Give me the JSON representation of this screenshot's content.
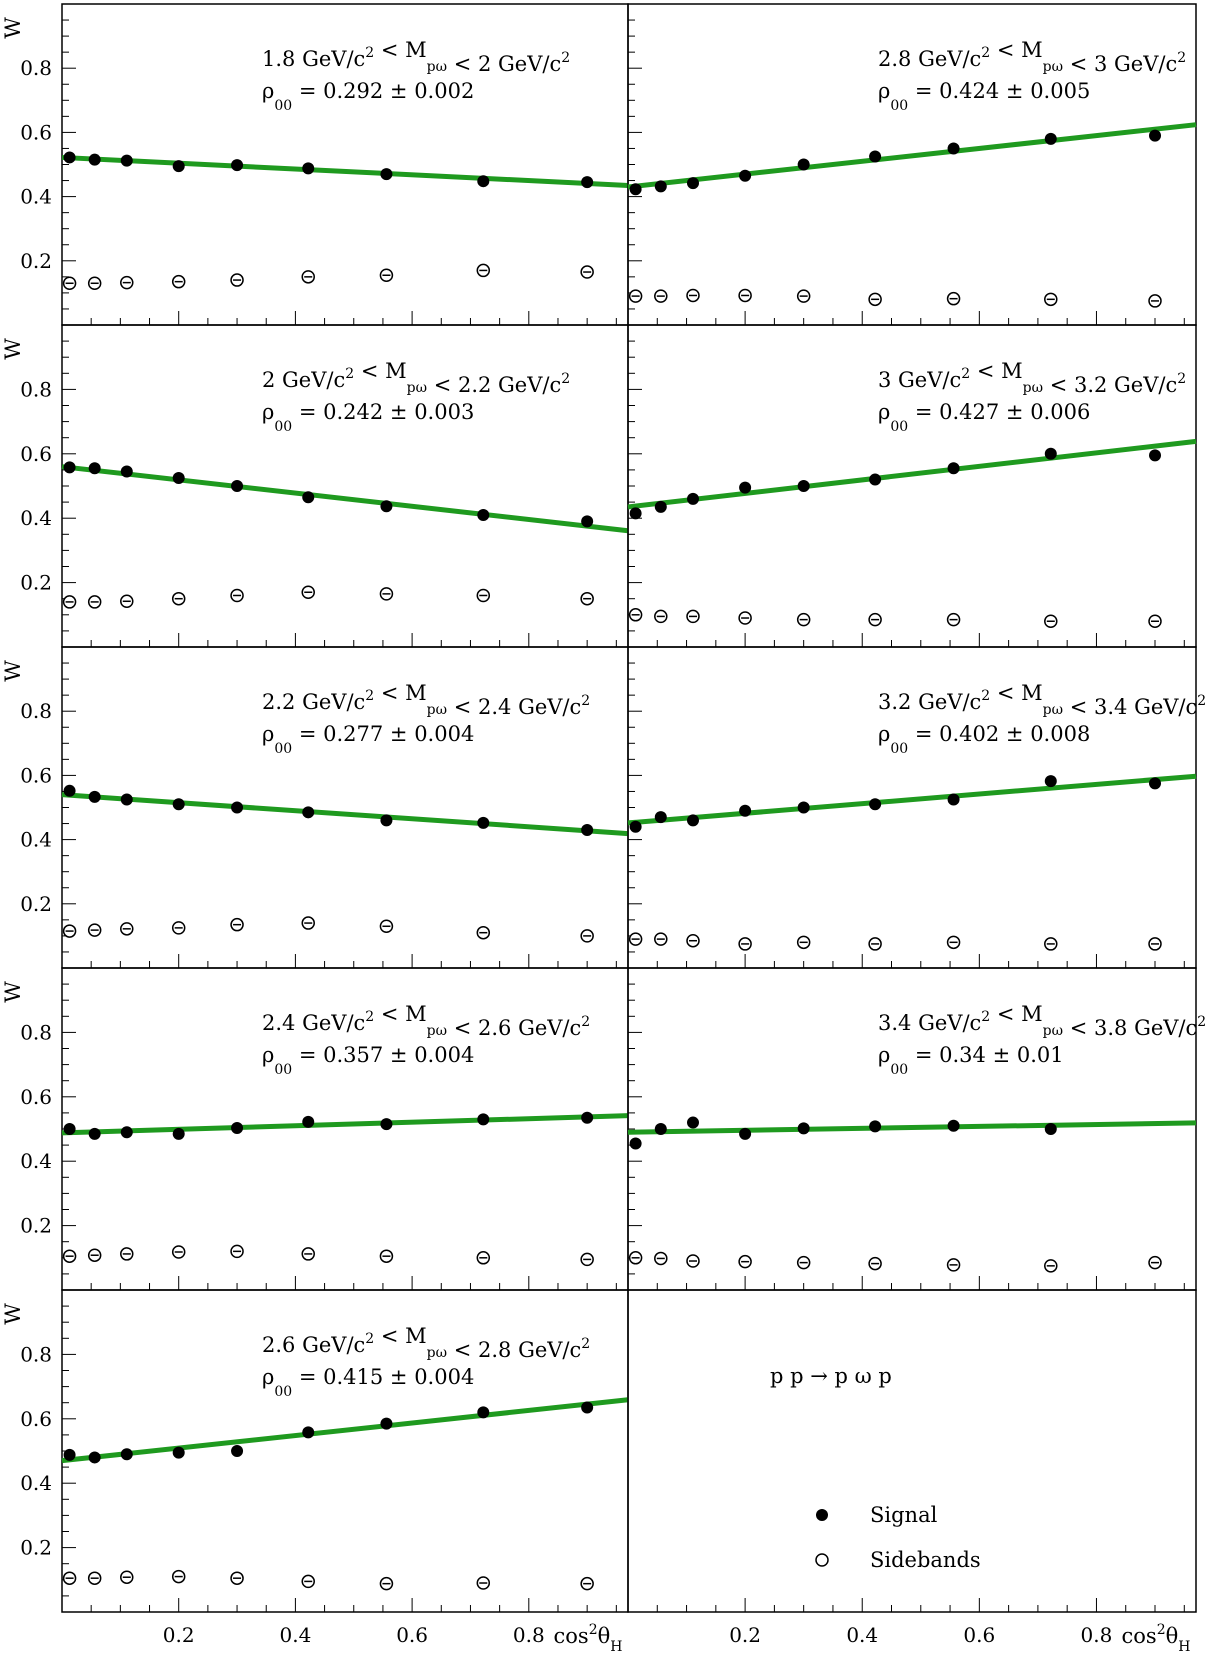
{
  "figure": {
    "process_label": "p p → p ω p",
    "legend": {
      "signal": "Signal",
      "sidebands": "Sidebands"
    },
    "ylabel": "W",
    "xlabel_main": "cos",
    "xlabel_sup": "2",
    "xlabel_theta": "θ",
    "xlabel_sub": "H",
    "colors": {
      "fit": "#1f9a1f",
      "marker": "#000000"
    }
  },
  "chart_data": [
    {
      "type": "scatter",
      "mass_lo": "1.8 GeV/c",
      "mass_mid": " < M",
      "mass_sub": "pω",
      "mass_hi": " < 2 GeV/c",
      "sup": "2",
      "rho_value": " = 0.292 ± 0.002",
      "x": [
        0.013,
        0.056,
        0.111,
        0.2,
        0.3,
        0.422,
        0.556,
        0.722,
        0.9
      ],
      "series": [
        {
          "name": "Signal",
          "values": [
            0.522,
            0.515,
            0.512,
            0.495,
            0.498,
            0.488,
            0.47,
            0.448,
            0.445
          ]
        },
        {
          "name": "Sidebands",
          "values": [
            0.13,
            0.13,
            0.132,
            0.135,
            0.14,
            0.15,
            0.155,
            0.17,
            0.165
          ]
        }
      ],
      "fit": {
        "intercept": 0.522,
        "slope": -0.09
      },
      "xlim": [
        0,
        0.97
      ],
      "ylim": [
        0,
        1
      ]
    },
    {
      "type": "scatter",
      "mass_lo": "2.8 GeV/c",
      "mass_mid": " < M",
      "mass_sub": "pω",
      "mass_hi": " < 3 GeV/c",
      "sup": "2",
      "rho_value": " = 0.424 ± 0.005",
      "x": [
        0.013,
        0.056,
        0.111,
        0.2,
        0.3,
        0.422,
        0.556,
        0.722,
        0.9
      ],
      "series": [
        {
          "name": "Signal",
          "values": [
            0.423,
            0.432,
            0.442,
            0.465,
            0.5,
            0.525,
            0.55,
            0.58,
            0.59
          ]
        },
        {
          "name": "Sidebands",
          "values": [
            0.09,
            0.09,
            0.092,
            0.092,
            0.09,
            0.08,
            0.082,
            0.08,
            0.075
          ]
        }
      ],
      "fit": {
        "intercept": 0.43,
        "slope": 0.2
      },
      "xlim": [
        0,
        0.97
      ],
      "ylim": [
        0,
        1
      ]
    },
    {
      "type": "scatter",
      "mass_lo": "2 GeV/c",
      "mass_mid": " < M",
      "mass_sub": "pω",
      "mass_hi": " < 2.2 GeV/c",
      "sup": "2",
      "rho_value": " = 0.242 ± 0.003",
      "x": [
        0.013,
        0.056,
        0.111,
        0.2,
        0.3,
        0.422,
        0.556,
        0.722,
        0.9
      ],
      "series": [
        {
          "name": "Signal",
          "values": [
            0.558,
            0.555,
            0.545,
            0.525,
            0.5,
            0.465,
            0.437,
            0.41,
            0.39
          ]
        },
        {
          "name": "Sidebands",
          "values": [
            0.14,
            0.14,
            0.142,
            0.15,
            0.16,
            0.17,
            0.165,
            0.16,
            0.15
          ]
        }
      ],
      "fit": {
        "intercept": 0.56,
        "slope": -0.205
      },
      "xlim": [
        0,
        0.97
      ],
      "ylim": [
        0,
        1
      ]
    },
    {
      "type": "scatter",
      "mass_lo": "3 GeV/c",
      "mass_mid": " < M",
      "mass_sub": "pω",
      "mass_hi": " < 3.2 GeV/c",
      "sup": "2",
      "rho_value": " = 0.427 ± 0.006",
      "x": [
        0.013,
        0.056,
        0.111,
        0.2,
        0.3,
        0.422,
        0.556,
        0.722,
        0.9
      ],
      "series": [
        {
          "name": "Signal",
          "values": [
            0.415,
            0.435,
            0.46,
            0.495,
            0.5,
            0.52,
            0.555,
            0.6,
            0.595
          ]
        },
        {
          "name": "Sidebands",
          "values": [
            0.1,
            0.095,
            0.095,
            0.09,
            0.085,
            0.085,
            0.085,
            0.08,
            0.08
          ]
        }
      ],
      "fit": {
        "intercept": 0.435,
        "slope": 0.21
      },
      "xlim": [
        0,
        0.97
      ],
      "ylim": [
        0,
        1
      ]
    },
    {
      "type": "scatter",
      "mass_lo": "2.2 GeV/c",
      "mass_mid": " < M",
      "mass_sub": "pω",
      "mass_hi": " < 2.4 GeV/c",
      "sup": "2",
      "rho_value": " = 0.277 ± 0.004",
      "x": [
        0.013,
        0.056,
        0.111,
        0.2,
        0.3,
        0.422,
        0.556,
        0.722,
        0.9
      ],
      "series": [
        {
          "name": "Signal",
          "values": [
            0.552,
            0.533,
            0.525,
            0.51,
            0.5,
            0.485,
            0.46,
            0.452,
            0.43
          ]
        },
        {
          "name": "Sidebands",
          "values": [
            0.115,
            0.118,
            0.122,
            0.125,
            0.135,
            0.14,
            0.13,
            0.11,
            0.1
          ]
        }
      ],
      "fit": {
        "intercept": 0.54,
        "slope": -0.125
      },
      "xlim": [
        0,
        0.97
      ],
      "ylim": [
        0,
        1
      ]
    },
    {
      "type": "scatter",
      "mass_lo": "3.2 GeV/c",
      "mass_mid": " < M",
      "mass_sub": "pω",
      "mass_hi": " < 3.4 GeV/c",
      "sup": "2",
      "rho_value": " = 0.402 ± 0.008",
      "x": [
        0.013,
        0.056,
        0.111,
        0.2,
        0.3,
        0.422,
        0.556,
        0.722,
        0.9
      ],
      "series": [
        {
          "name": "Signal",
          "values": [
            0.44,
            0.47,
            0.46,
            0.49,
            0.5,
            0.51,
            0.525,
            0.582,
            0.575
          ]
        },
        {
          "name": "Sidebands",
          "values": [
            0.09,
            0.09,
            0.085,
            0.075,
            0.08,
            0.075,
            0.08,
            0.075,
            0.075
          ]
        }
      ],
      "fit": {
        "intercept": 0.452,
        "slope": 0.15
      },
      "xlim": [
        0,
        0.97
      ],
      "ylim": [
        0,
        1
      ]
    },
    {
      "type": "scatter",
      "mass_lo": "2.4 GeV/c",
      "mass_mid": " < M",
      "mass_sub": "pω",
      "mass_hi": " < 2.6 GeV/c",
      "sup": "2",
      "rho_value": " = 0.357 ± 0.004",
      "x": [
        0.013,
        0.056,
        0.111,
        0.2,
        0.3,
        0.422,
        0.556,
        0.722,
        0.9
      ],
      "series": [
        {
          "name": "Signal",
          "values": [
            0.5,
            0.485,
            0.49,
            0.485,
            0.503,
            0.522,
            0.515,
            0.53,
            0.535
          ]
        },
        {
          "name": "Sidebands",
          "values": [
            0.105,
            0.108,
            0.112,
            0.118,
            0.12,
            0.112,
            0.105,
            0.1,
            0.095
          ]
        }
      ],
      "fit": {
        "intercept": 0.488,
        "slope": 0.055
      },
      "xlim": [
        0,
        0.97
      ],
      "ylim": [
        0,
        1
      ]
    },
    {
      "type": "scatter",
      "mass_lo": "3.4 GeV/c",
      "mass_mid": " < M",
      "mass_sub": "pω",
      "mass_hi": " < 3.8 GeV/c",
      "sup": "2",
      "rho_value": " = 0.34 ± 0.01",
      "x": [
        0.013,
        0.056,
        0.111,
        0.2,
        0.3,
        0.422,
        0.556,
        0.722,
        0.9
      ],
      "series": [
        {
          "name": "Signal",
          "values": [
            0.455,
            0.5,
            0.52,
            0.485,
            0.502,
            0.508,
            0.51,
            0.5,
            null
          ]
        },
        {
          "name": "Sidebands",
          "values": [
            0.1,
            0.098,
            0.09,
            0.088,
            0.085,
            0.082,
            0.078,
            0.075,
            0.085
          ]
        }
      ],
      "fit": {
        "intercept": 0.49,
        "slope": 0.03
      },
      "xlim": [
        0,
        0.97
      ],
      "ylim": [
        0,
        1
      ]
    },
    {
      "type": "scatter",
      "mass_lo": "2.6 GeV/c",
      "mass_mid": " < M",
      "mass_sub": "pω",
      "mass_hi": " < 2.8 GeV/c",
      "sup": "2",
      "rho_value": " = 0.415 ± 0.004",
      "x": [
        0.013,
        0.056,
        0.111,
        0.2,
        0.3,
        0.422,
        0.556,
        0.722,
        0.9
      ],
      "series": [
        {
          "name": "Signal",
          "values": [
            0.488,
            0.48,
            0.49,
            0.495,
            0.5,
            0.558,
            0.585,
            0.62,
            0.635
          ]
        },
        {
          "name": "Sidebands",
          "values": [
            0.105,
            0.105,
            0.108,
            0.11,
            0.105,
            0.095,
            0.088,
            0.09,
            0.088
          ]
        }
      ],
      "fit": {
        "intercept": 0.47,
        "slope": 0.195
      },
      "xlim": [
        0,
        0.97
      ],
      "ylim": [
        0,
        1
      ]
    }
  ]
}
